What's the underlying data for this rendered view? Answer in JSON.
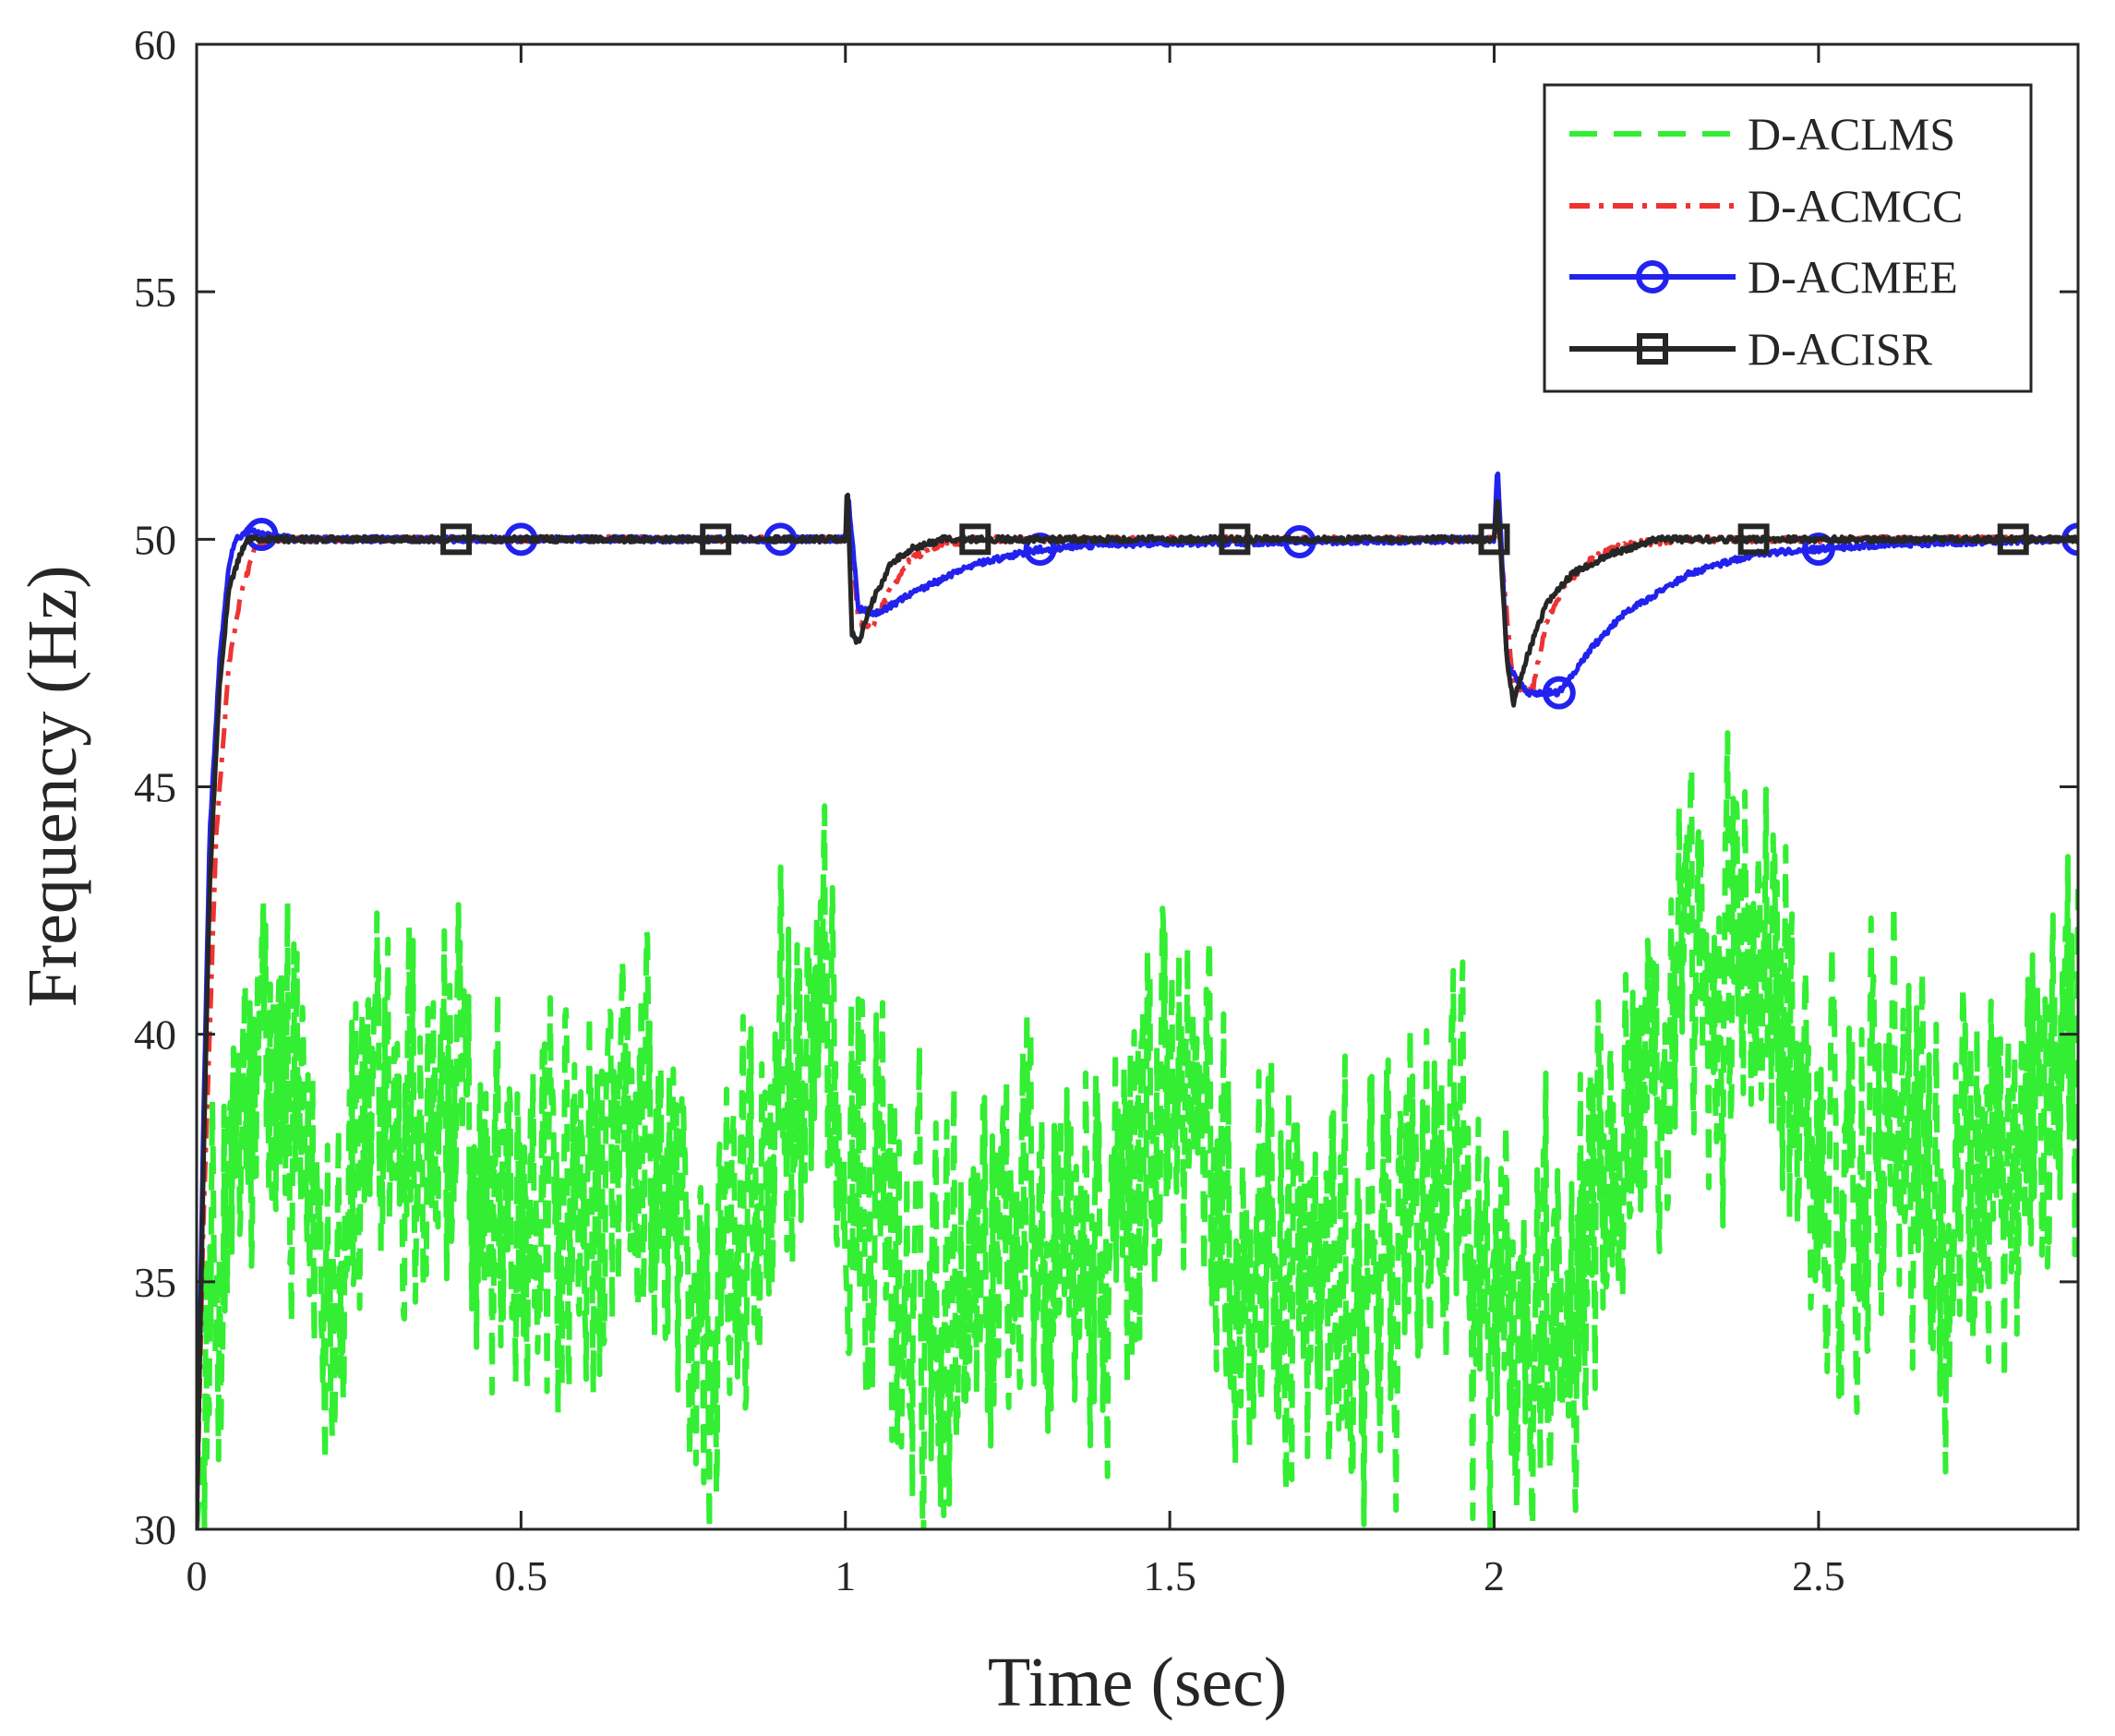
{
  "chart_data": {
    "type": "line",
    "title": "",
    "xlabel": "Time (sec)",
    "ylabel": "Frequency (Hz)",
    "xlim": [
      0,
      2.9
    ],
    "ylim": [
      30,
      60
    ],
    "xticks": [
      0,
      0.5,
      1,
      1.5,
      2,
      2.5
    ],
    "xtick_labels": [
      "0",
      "0.5",
      "1",
      "1.5",
      "2",
      "2.5"
    ],
    "yticks": [
      30,
      35,
      40,
      45,
      50,
      55,
      60
    ],
    "ytick_labels": [
      "30",
      "35",
      "40",
      "45",
      "50",
      "55",
      "60"
    ],
    "grid": false,
    "legend_position": "top-right",
    "series": [
      {
        "name": "D-ACLMS",
        "color": "#33ee33",
        "style": "dashed",
        "marker": "none",
        "noise_amplitude": 3.2,
        "x": [
          0,
          0.02,
          0.04,
          0.08,
          0.12,
          0.2,
          0.3,
          0.4,
          0.5,
          0.6,
          0.7,
          0.8,
          0.9,
          1.0,
          1.1,
          1.2,
          1.3,
          1.4,
          1.5,
          1.6,
          1.7,
          1.8,
          1.9,
          2.0,
          2.1,
          2.2,
          2.3,
          2.4,
          2.5,
          2.6,
          2.7,
          2.8,
          2.9
        ],
        "y": [
          30,
          33,
          36,
          38,
          39,
          36,
          38.5,
          38,
          36,
          36.5,
          37,
          33.5,
          39,
          38.5,
          34,
          36,
          37,
          35,
          39.5,
          36,
          35,
          34,
          37.5,
          34,
          35,
          39,
          40,
          42,
          37,
          38,
          36,
          38,
          39
        ]
      },
      {
        "name": "D-ACMCC",
        "color": "#ee3333",
        "style": "dashdot",
        "marker": "none",
        "x": [
          0,
          0.01,
          0.03,
          0.05,
          0.07,
          0.09,
          0.11,
          0.2,
          1.0,
          1.005,
          1.02,
          1.04,
          1.07,
          1.1,
          1.15,
          1.2,
          1.3,
          2.0,
          2.005,
          2.03,
          2.06,
          2.08,
          2.11,
          2.15,
          2.2,
          2.3,
          2.9
        ],
        "y": [
          30,
          36,
          44,
          47.5,
          49,
          49.8,
          50,
          50,
          50,
          50.8,
          48.3,
          48.2,
          49,
          49.6,
          49.9,
          50,
          50,
          50,
          50.5,
          47,
          47,
          48.3,
          49.1,
          49.6,
          49.9,
          50,
          50
        ]
      },
      {
        "name": "D-ACMEE",
        "color": "#2222ee",
        "style": "solid",
        "marker": "circle",
        "x": [
          0,
          0.01,
          0.02,
          0.035,
          0.05,
          0.06,
          0.08,
          0.1,
          0.15,
          0.5,
          1.0,
          1.005,
          1.02,
          1.05,
          1.1,
          1.2,
          1.3,
          1.4,
          2.0,
          2.005,
          2.02,
          2.05,
          2.1,
          2.15,
          2.2,
          2.3,
          2.4,
          2.5,
          2.6,
          2.9
        ],
        "y": [
          30,
          38,
          44,
          47.5,
          49.5,
          50,
          50.2,
          50.1,
          50,
          50,
          50,
          50.8,
          48.6,
          48.5,
          48.9,
          49.5,
          49.8,
          49.9,
          50,
          51.5,
          47.5,
          46.9,
          46.9,
          47.8,
          48.5,
          49.3,
          49.7,
          49.8,
          49.9,
          50
        ]
      },
      {
        "name": "D-ACISR",
        "color": "#262626",
        "style": "solid",
        "marker": "square",
        "x": [
          0,
          0.01,
          0.02,
          0.035,
          0.05,
          0.07,
          0.08,
          0.1,
          0.2,
          1.0,
          1.003,
          1.01,
          1.02,
          1.04,
          1.07,
          1.1,
          1.15,
          1.2,
          2.0,
          2.005,
          2.02,
          2.03,
          2.05,
          2.08,
          2.12,
          2.18,
          2.25,
          2.9
        ],
        "y": [
          30,
          37,
          43,
          47,
          49,
          49.8,
          50,
          50,
          50,
          50,
          51.2,
          48.1,
          47.9,
          48.7,
          49.5,
          49.8,
          50,
          50,
          50,
          50.9,
          47.5,
          46.7,
          47.6,
          48.7,
          49.3,
          49.7,
          50,
          50
        ]
      }
    ]
  }
}
